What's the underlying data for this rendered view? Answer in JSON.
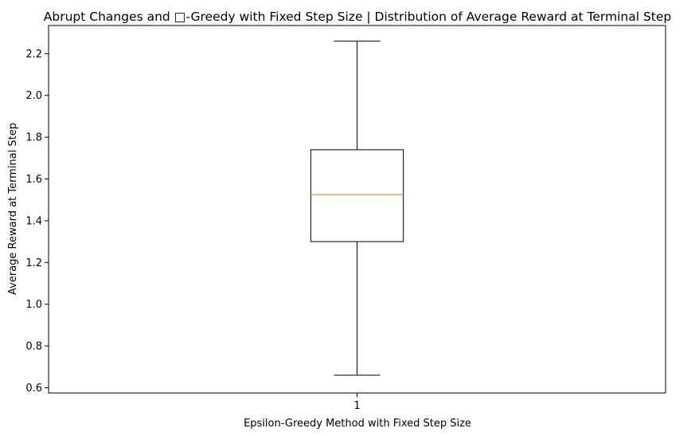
{
  "chart_data": {
    "type": "box",
    "title": "Abrupt Changes and □-Greedy with Fixed Step Size | Distribution of Average Reward at Terminal Step",
    "xlabel": "Epsilon-Greedy Method with Fixed Step Size",
    "ylabel": "Average Reward at Terminal Step",
    "categories": [
      "1"
    ],
    "ylim": [
      0.575,
      2.335
    ],
    "yticks": [
      0.6,
      0.8,
      1.0,
      1.2,
      1.4,
      1.6,
      1.8,
      2.0,
      2.2
    ],
    "ytick_labels": [
      "0.6",
      "0.8",
      "1.0",
      "1.2",
      "1.4",
      "1.6",
      "1.8",
      "2.0",
      "2.2"
    ],
    "boxes": [
      {
        "category": "1",
        "whisker_low": 0.66,
        "q1": 1.3,
        "median": 1.525,
        "q3": 1.74,
        "whisker_high": 2.26
      }
    ],
    "colors": {
      "box": "#000000",
      "median": "#ff7f0e"
    },
    "grid": false,
    "legend": "none"
  }
}
